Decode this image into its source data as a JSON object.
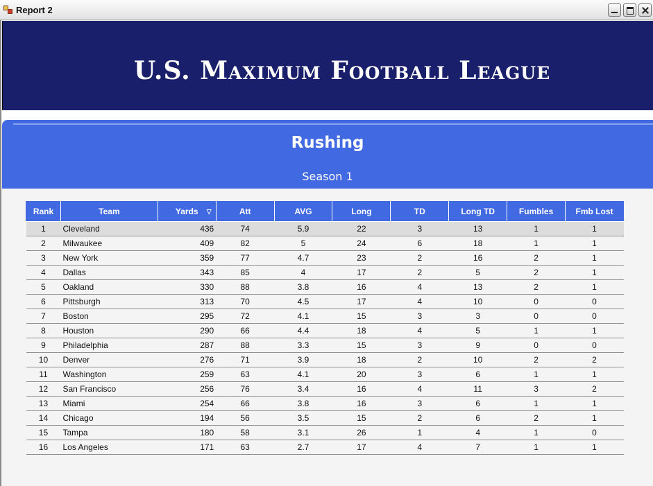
{
  "window": {
    "title": "Report 2"
  },
  "banner": {
    "league_title": "U.S. Maximum Football League"
  },
  "section": {
    "title": "Rushing",
    "subtitle": "Season 1"
  },
  "table": {
    "columns": [
      "Rank",
      "Team",
      "Yards",
      "Att",
      "AVG",
      "Long",
      "TD",
      "Long TD",
      "Fumbles",
      "Fmb Lost"
    ],
    "sorted_column": "Yards",
    "sort_icon": "sort-descending-icon",
    "rows": [
      [
        "1",
        "Cleveland",
        "436",
        "74",
        "5.9",
        "22",
        "3",
        "13",
        "1",
        "1"
      ],
      [
        "2",
        "Milwaukee",
        "409",
        "82",
        "5",
        "24",
        "6",
        "18",
        "1",
        "1"
      ],
      [
        "3",
        "New York",
        "359",
        "77",
        "4.7",
        "23",
        "2",
        "16",
        "2",
        "1"
      ],
      [
        "4",
        "Dallas",
        "343",
        "85",
        "4",
        "17",
        "2",
        "5",
        "2",
        "1"
      ],
      [
        "5",
        "Oakland",
        "330",
        "88",
        "3.8",
        "16",
        "4",
        "13",
        "2",
        "1"
      ],
      [
        "6",
        "Pittsburgh",
        "313",
        "70",
        "4.5",
        "17",
        "4",
        "10",
        "0",
        "0"
      ],
      [
        "7",
        "Boston",
        "295",
        "72",
        "4.1",
        "15",
        "3",
        "3",
        "0",
        "0"
      ],
      [
        "8",
        "Houston",
        "290",
        "66",
        "4.4",
        "18",
        "4",
        "5",
        "1",
        "1"
      ],
      [
        "9",
        "Philadelphia",
        "287",
        "88",
        "3.3",
        "15",
        "3",
        "9",
        "0",
        "0"
      ],
      [
        "10",
        "Denver",
        "276",
        "71",
        "3.9",
        "18",
        "2",
        "10",
        "2",
        "2"
      ],
      [
        "11",
        "Washington",
        "259",
        "63",
        "4.1",
        "20",
        "3",
        "6",
        "1",
        "1"
      ],
      [
        "12",
        "San Francisco",
        "256",
        "76",
        "3.4",
        "16",
        "4",
        "11",
        "3",
        "2"
      ],
      [
        "13",
        "Miami",
        "254",
        "66",
        "3.8",
        "16",
        "3",
        "6",
        "1",
        "1"
      ],
      [
        "14",
        "Chicago",
        "194",
        "56",
        "3.5",
        "15",
        "2",
        "6",
        "2",
        "1"
      ],
      [
        "15",
        "Tampa",
        "180",
        "58",
        "3.1",
        "26",
        "1",
        "4",
        "1",
        "0"
      ],
      [
        "16",
        "Los Angeles",
        "171",
        "63",
        "2.7",
        "17",
        "4",
        "7",
        "1",
        "1"
      ]
    ],
    "selected_row": 0
  },
  "colors": {
    "banner_bg": "#1a1f6b",
    "section_bg": "#4169e1",
    "header_bg": "#4169e1",
    "selected_row_bg": "#dcdcdc"
  }
}
